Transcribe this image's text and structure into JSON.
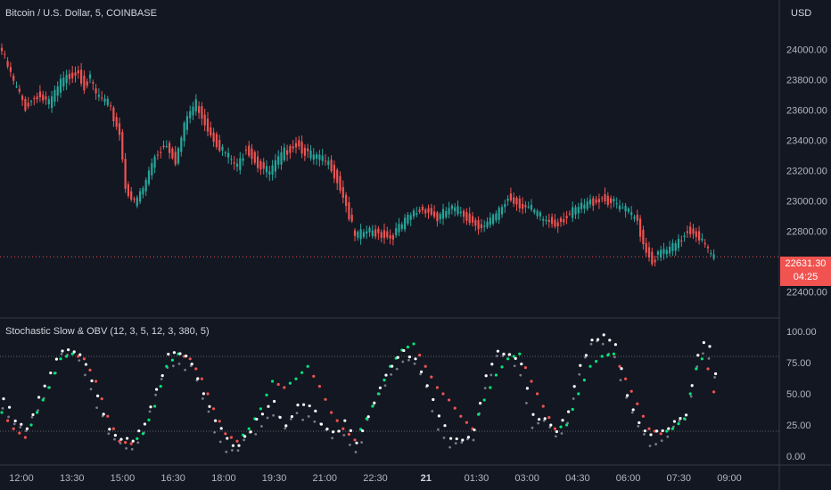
{
  "header": {
    "symbol_title": "Bitcoin / U.S. Dollar, 5, COINBASE",
    "currency": "USD"
  },
  "indicator": {
    "title": "Stochastic Slow & OBV (12, 3, 5, 12, 3, 380, 5)"
  },
  "last_price": {
    "value": "22631.30",
    "countdown": "04:25"
  },
  "colors": {
    "background": "#131722",
    "up": "#26a69a",
    "down": "#ef5350",
    "grid_line": "#363a45",
    "stoch_bull": "#00e676",
    "stoch_bear": "#ef5350",
    "obv_dot": "#ffffff",
    "signal_dot": "#787b86"
  },
  "chart_data": [
    {
      "type": "candlestick",
      "title": "Bitcoin / U.S. Dollar, 5, COINBASE",
      "y_ticks": [
        "24000.00",
        "23800.00",
        "23600.00",
        "23400.00",
        "23200.00",
        "23000.00",
        "22800.00",
        "22400.00"
      ],
      "y_range": [
        22280,
        24150
      ],
      "last_price": 22631.3,
      "anchors_close": [
        [
          0,
          23990
        ],
        [
          4,
          23780
        ],
        [
          8,
          23620
        ],
        [
          12,
          23700
        ],
        [
          16,
          23640
        ],
        [
          20,
          23780
        ],
        [
          24,
          23840
        ],
        [
          26,
          23860
        ],
        [
          28,
          23760
        ],
        [
          30,
          23800
        ],
        [
          32,
          23700
        ],
        [
          36,
          23640
        ],
        [
          40,
          23450
        ],
        [
          42,
          23100
        ],
        [
          45,
          22980
        ],
        [
          48,
          23080
        ],
        [
          52,
          23300
        ],
        [
          56,
          23380
        ],
        [
          59,
          23270
        ],
        [
          63,
          23560
        ],
        [
          66,
          23650
        ],
        [
          70,
          23480
        ],
        [
          74,
          23360
        ],
        [
          78,
          23270
        ],
        [
          80,
          23220
        ],
        [
          83,
          23360
        ],
        [
          87,
          23240
        ],
        [
          91,
          23190
        ],
        [
          96,
          23320
        ],
        [
          100,
          23380
        ],
        [
          104,
          23310
        ],
        [
          108,
          23280
        ],
        [
          112,
          23230
        ],
        [
          116,
          23040
        ],
        [
          120,
          22760
        ],
        [
          124,
          22800
        ],
        [
          128,
          22790
        ],
        [
          132,
          22760
        ],
        [
          136,
          22840
        ],
        [
          140,
          22920
        ],
        [
          144,
          22950
        ],
        [
          148,
          22880
        ],
        [
          152,
          22950
        ],
        [
          156,
          22930
        ],
        [
          160,
          22860
        ],
        [
          164,
          22830
        ],
        [
          168,
          22900
        ],
        [
          172,
          23020
        ],
        [
          176,
          22980
        ],
        [
          180,
          22940
        ],
        [
          184,
          22880
        ],
        [
          188,
          22850
        ],
        [
          192,
          22900
        ],
        [
          196,
          22950
        ],
        [
          200,
          22990
        ],
        [
          204,
          23020
        ],
        [
          208,
          22980
        ],
        [
          212,
          22940
        ],
        [
          216,
          22870
        ],
        [
          218,
          22720
        ],
        [
          221,
          22600
        ],
        [
          224,
          22660
        ],
        [
          227,
          22680
        ],
        [
          230,
          22720
        ],
        [
          233,
          22810
        ],
        [
          236,
          22790
        ],
        [
          239,
          22700
        ],
        [
          241,
          22631
        ]
      ],
      "x_ticks": [
        "12:00",
        "13:30",
        "15:00",
        "16:30",
        "18:00",
        "19:30",
        "21:00",
        "22:30",
        "21",
        "01:30",
        "03:00",
        "04:30",
        "06:00",
        "07:30",
        "09:00"
      ]
    },
    {
      "type": "scatter",
      "title": "Stochastic Slow & OBV (12, 3, 5, 12, 3, 380, 5)",
      "y_ticks": [
        "100.00",
        "75.00",
        "50.00",
        "25.00",
        "0.00"
      ],
      "y_range": [
        0,
        100
      ],
      "levels": [
        80,
        20
      ],
      "stoch_anchors": [
        [
          0,
          35
        ],
        [
          4,
          22
        ],
        [
          8,
          15
        ],
        [
          12,
          35
        ],
        [
          16,
          55
        ],
        [
          20,
          78
        ],
        [
          24,
          82
        ],
        [
          28,
          78
        ],
        [
          32,
          60
        ],
        [
          36,
          32
        ],
        [
          40,
          12
        ],
        [
          44,
          10
        ],
        [
          48,
          18
        ],
        [
          52,
          40
        ],
        [
          56,
          72
        ],
        [
          60,
          82
        ],
        [
          64,
          78
        ],
        [
          68,
          62
        ],
        [
          72,
          38
        ],
        [
          76,
          18
        ],
        [
          80,
          12
        ],
        [
          84,
          22
        ],
        [
          88,
          38
        ],
        [
          92,
          60
        ],
        [
          96,
          55
        ],
        [
          100,
          62
        ],
        [
          104,
          72
        ],
        [
          108,
          56
        ],
        [
          112,
          35
        ],
        [
          116,
          22
        ],
        [
          120,
          13
        ],
        [
          124,
          30
        ],
        [
          128,
          50
        ],
        [
          132,
          72
        ],
        [
          136,
          85
        ],
        [
          140,
          90
        ],
        [
          144,
          72
        ],
        [
          148,
          55
        ],
        [
          152,
          45
        ],
        [
          156,
          32
        ],
        [
          160,
          22
        ],
        [
          164,
          45
        ],
        [
          168,
          65
        ],
        [
          172,
          78
        ],
        [
          176,
          82
        ],
        [
          180,
          60
        ],
        [
          184,
          40
        ],
        [
          188,
          22
        ],
        [
          192,
          25
        ],
        [
          196,
          50
        ],
        [
          200,
          72
        ],
        [
          204,
          80
        ],
        [
          208,
          82
        ],
        [
          212,
          62
        ],
        [
          216,
          42
        ],
        [
          220,
          22
        ],
        [
          224,
          18
        ],
        [
          228,
          22
        ],
        [
          232,
          30
        ],
        [
          236,
          70
        ],
        [
          239,
          82
        ],
        [
          241,
          58
        ],
        [
          243,
          45
        ]
      ],
      "obv_anchors": [
        [
          0,
          45
        ],
        [
          4,
          30
        ],
        [
          8,
          25
        ],
        [
          12,
          45
        ],
        [
          16,
          65
        ],
        [
          20,
          85
        ],
        [
          24,
          86
        ],
        [
          28,
          72
        ],
        [
          32,
          48
        ],
        [
          36,
          22
        ],
        [
          40,
          16
        ],
        [
          44,
          12
        ],
        [
          48,
          28
        ],
        [
          52,
          55
        ],
        [
          56,
          80
        ],
        [
          60,
          82
        ],
        [
          64,
          76
        ],
        [
          68,
          52
        ],
        [
          72,
          28
        ],
        [
          76,
          12
        ],
        [
          80,
          10
        ],
        [
          84,
          22
        ],
        [
          88,
          32
        ],
        [
          92,
          42
        ],
        [
          96,
          26
        ],
        [
          100,
          38
        ],
        [
          104,
          40
        ],
        [
          108,
          28
        ],
        [
          112,
          20
        ],
        [
          116,
          26
        ],
        [
          120,
          10
        ],
        [
          124,
          32
        ],
        [
          128,
          55
        ],
        [
          132,
          72
        ],
        [
          136,
          82
        ],
        [
          140,
          80
        ],
        [
          144,
          58
        ],
        [
          148,
          30
        ],
        [
          152,
          15
        ],
        [
          156,
          14
        ],
        [
          160,
          20
        ],
        [
          164,
          62
        ],
        [
          168,
          85
        ],
        [
          172,
          84
        ],
        [
          176,
          72
        ],
        [
          180,
          32
        ],
        [
          184,
          32
        ],
        [
          188,
          20
        ],
        [
          192,
          35
        ],
        [
          196,
          72
        ],
        [
          200,
          95
        ],
        [
          204,
          95
        ],
        [
          208,
          88
        ],
        [
          212,
          50
        ],
        [
          216,
          28
        ],
        [
          220,
          16
        ],
        [
          224,
          20
        ],
        [
          228,
          28
        ],
        [
          232,
          35
        ],
        [
          236,
          78
        ],
        [
          239,
          96
        ],
        [
          241,
          78
        ],
        [
          243,
          60
        ]
      ]
    }
  ]
}
